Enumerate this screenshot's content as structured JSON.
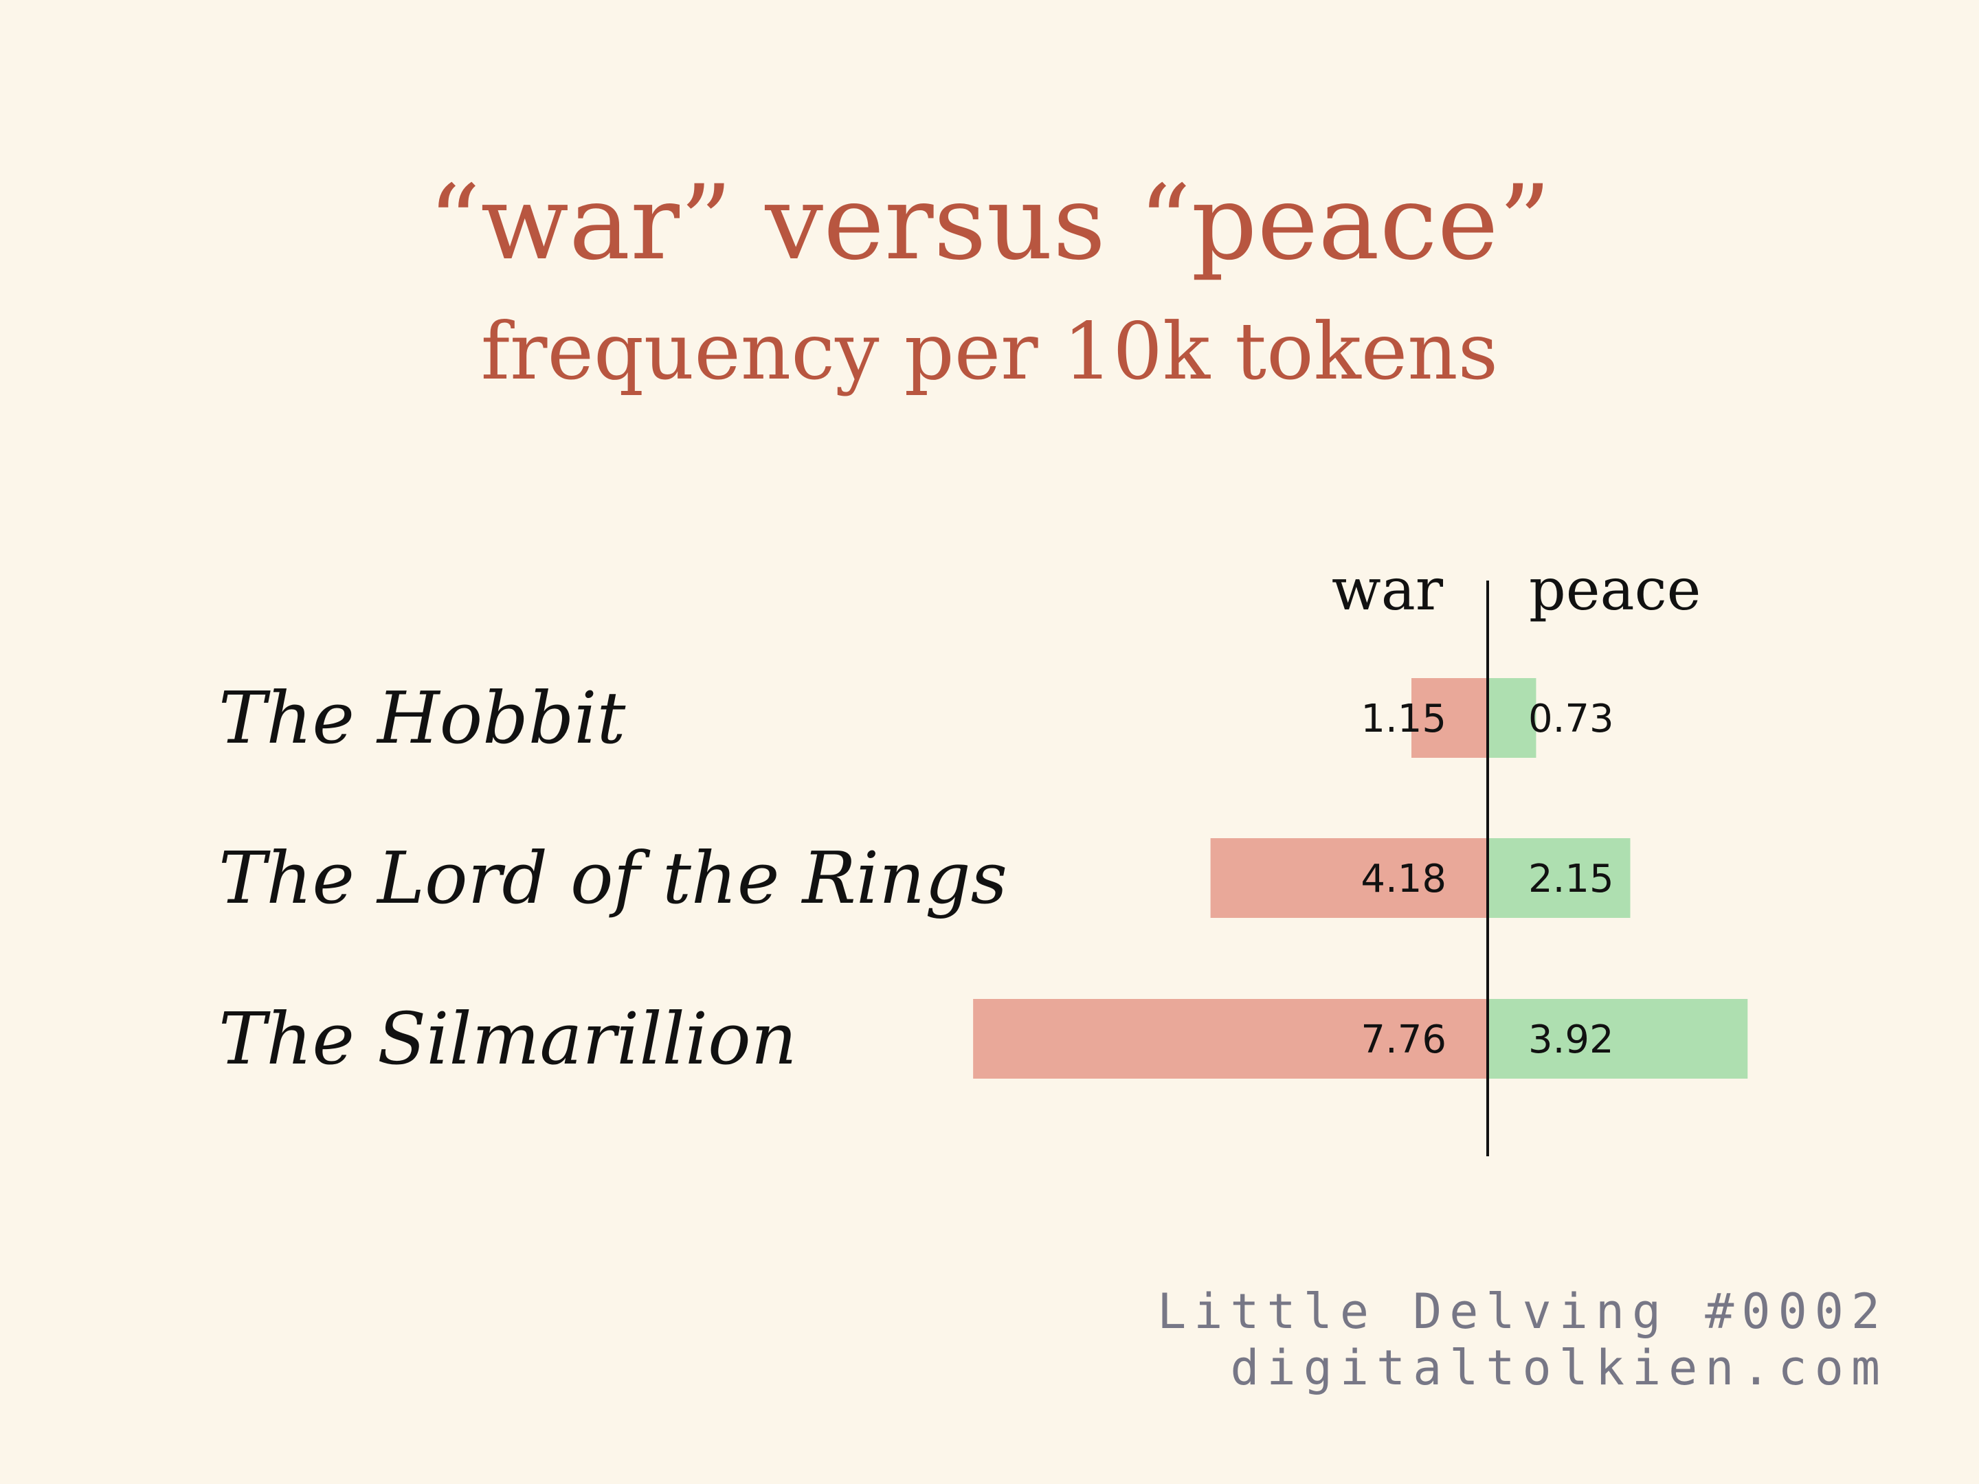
{
  "header": {
    "title": "“war” versus “peace”",
    "subtitle": "frequency per 10k tokens"
  },
  "chart_data": {
    "type": "bar",
    "orientation": "horizontal-diverging",
    "title": "“war” versus “peace”",
    "subtitle": "frequency per 10k tokens",
    "categories": [
      "The Hobbit",
      "The Lord of the Rings",
      "The Silmarillion"
    ],
    "series": [
      {
        "name": "war",
        "values": [
          1.15,
          4.18,
          7.76
        ],
        "color": "#e9a899"
      },
      {
        "name": "peace",
        "values": [
          0.73,
          2.15,
          3.92
        ],
        "color": "#aedfb0"
      }
    ],
    "value_labels": {
      "war": [
        "1.15",
        "4.18",
        "7.76"
      ],
      "peace": [
        "0.73",
        "2.15",
        "3.92"
      ]
    },
    "grid": false,
    "legend": "none",
    "colors": {
      "axis": "#111111",
      "text": "#111111"
    }
  },
  "footer": {
    "line1": "Little Delving #0002",
    "line2": "digitaltolkien.com"
  }
}
